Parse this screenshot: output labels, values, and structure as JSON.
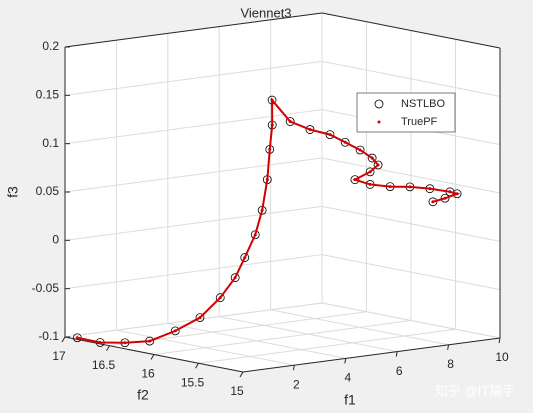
{
  "chart_data": {
    "type": "scatter3d",
    "title": "Viennet3",
    "xlabel": "f1",
    "ylabel": "f2",
    "zlabel": "f3",
    "xlim": [
      0,
      10
    ],
    "xticks": [
      2,
      4,
      6,
      8,
      10
    ],
    "ylim": [
      15,
      17
    ],
    "yticks": [
      15,
      15.5,
      16,
      16.5,
      17
    ],
    "zlim": [
      -0.1,
      0.2
    ],
    "zticks": [
      -0.1,
      -0.05,
      0,
      0.05,
      0.1,
      0.15,
      0.2
    ],
    "grid": true,
    "legend": "upper right",
    "series": [
      {
        "name": "NSTLBO",
        "color": "#000000",
        "marker": "circle",
        "x": [
          0.2,
          0.4,
          0.6,
          0.8,
          1.0,
          1.2,
          1.4,
          1.6,
          1.8,
          2.0,
          2.2,
          2.4,
          2.6,
          2.8,
          3.0,
          3.74,
          4.51,
          5.29,
          5.88,
          6.46,
          6.93,
          7.16,
          6.85,
          6.26,
          6.85,
          7.63,
          8.4,
          8.31,
          9.09,
          9.37,
          8.9,
          8.43
        ],
        "y": [
          16.92,
          16.72,
          16.5,
          16.28,
          16.05,
          15.83,
          15.66,
          15.55,
          15.5,
          15.44,
          15.42,
          15.42,
          15.45,
          15.48,
          15.54,
          15.55,
          15.55,
          15.55,
          15.55,
          15.55,
          15.55,
          15.55,
          15.55,
          15.55,
          15.55,
          15.55,
          15.55,
          15.3,
          15.3,
          15.3,
          15.3,
          15.3
        ],
        "z": [
          -0.1,
          -0.102,
          -0.099,
          -0.094,
          -0.08,
          -0.063,
          -0.04,
          -0.018,
          0.003,
          0.027,
          0.052,
          0.083,
          0.113,
          0.137,
          0.161,
          0.136,
          0.125,
          0.117,
          0.107,
          0.097,
          0.087,
          0.079,
          0.073,
          0.067,
          0.06,
          0.055,
          0.052,
          0.055,
          0.049,
          0.046,
          0.043,
          0.041
        ]
      },
      {
        "name": "TruePF",
        "color": "#d40000",
        "marker": "dot",
        "x": [
          0.2,
          0.4,
          0.6,
          0.8,
          1.0,
          1.2,
          1.4,
          1.6,
          1.8,
          2.0,
          2.2,
          2.4,
          2.6,
          2.8,
          3.0,
          3.74,
          4.51,
          5.29,
          5.88,
          6.46,
          6.93,
          7.16,
          6.85,
          6.26,
          6.85,
          7.63,
          8.4,
          8.31,
          9.09,
          9.37,
          8.9,
          8.43
        ],
        "y": [
          16.92,
          16.72,
          16.5,
          16.28,
          16.05,
          15.83,
          15.66,
          15.55,
          15.5,
          15.44,
          15.42,
          15.42,
          15.45,
          15.48,
          15.54,
          15.55,
          15.55,
          15.55,
          15.55,
          15.55,
          15.55,
          15.55,
          15.55,
          15.55,
          15.55,
          15.55,
          15.55,
          15.3,
          15.3,
          15.3,
          15.3,
          15.3
        ],
        "z": [
          -0.1,
          -0.102,
          -0.099,
          -0.094,
          -0.08,
          -0.063,
          -0.04,
          -0.018,
          0.003,
          0.027,
          0.052,
          0.083,
          0.113,
          0.137,
          0.161,
          0.136,
          0.125,
          0.117,
          0.107,
          0.097,
          0.087,
          0.079,
          0.073,
          0.067,
          0.06,
          0.055,
          0.052,
          0.055,
          0.049,
          0.046,
          0.043,
          0.041
        ]
      }
    ],
    "watermark": "知乎 @IT猿手"
  }
}
